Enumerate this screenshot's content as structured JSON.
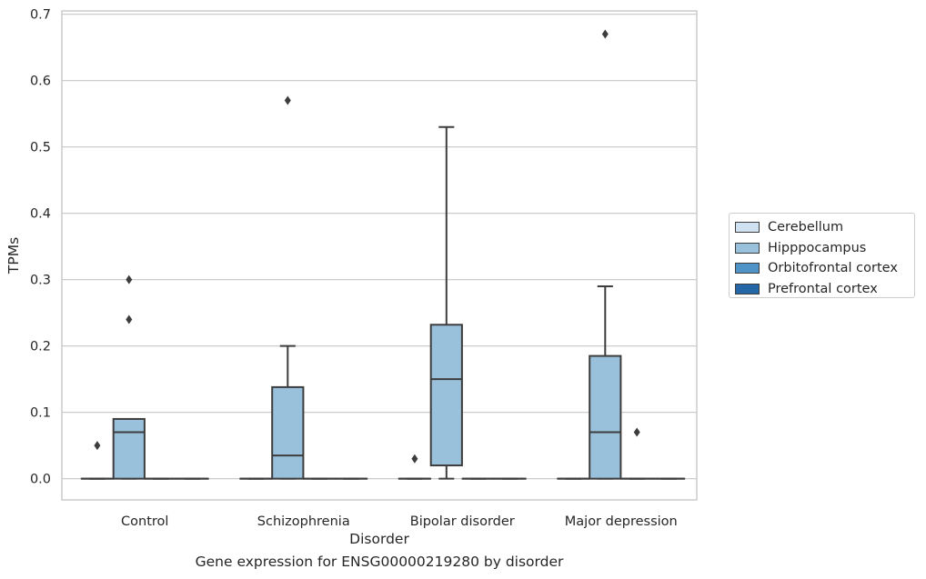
{
  "chart_data": {
    "type": "box",
    "xlabel": "Disorder",
    "ylabel": "TPMs",
    "caption": "Gene expression for ENSG00000219280 by disorder",
    "categories": [
      "Control",
      "Schizophrenia",
      "Bipolar disorder",
      "Major depression"
    ],
    "ylim": [
      -0.032,
      0.705
    ],
    "yticks": [
      0.0,
      0.1,
      0.2,
      0.3,
      0.4,
      0.5,
      0.6,
      0.7
    ],
    "ytick_labels": [
      "0.0",
      "0.1",
      "0.2",
      "0.3",
      "0.4",
      "0.5",
      "0.6",
      "0.7"
    ],
    "grid": true,
    "legend_position": "right",
    "series": [
      {
        "name": "Cerebellum",
        "color": "#d0e1f2",
        "boxes": [
          {
            "min": 0,
            "q1": 0,
            "median": 0,
            "q3": 0,
            "max": 0,
            "outliers": [
              0.05
            ]
          },
          {
            "min": 0,
            "q1": 0,
            "median": 0,
            "q3": 0,
            "max": 0,
            "outliers": []
          },
          {
            "min": 0,
            "q1": 0,
            "median": 0,
            "q3": 0,
            "max": 0,
            "outliers": [
              0.03
            ]
          },
          {
            "min": 0,
            "q1": 0,
            "median": 0,
            "q3": 0,
            "max": 0,
            "outliers": []
          }
        ]
      },
      {
        "name": "Hipppocampus",
        "color": "#9ac1db",
        "boxes": [
          {
            "min": 0,
            "q1": 0,
            "median": 0.07,
            "q3": 0.09,
            "max": 0.09,
            "outliers": [
              0.24,
              0.3
            ]
          },
          {
            "min": 0,
            "q1": 0,
            "median": 0.035,
            "q3": 0.138,
            "max": 0.2,
            "outliers": [
              0.57
            ]
          },
          {
            "min": 0,
            "q1": 0.02,
            "median": 0.15,
            "q3": 0.232,
            "max": 0.53,
            "outliers": []
          },
          {
            "min": 0,
            "q1": 0,
            "median": 0.07,
            "q3": 0.185,
            "max": 0.29,
            "outliers": [
              0.67
            ]
          }
        ]
      },
      {
        "name": "Orbitofrontal cortex",
        "color": "#5093c6",
        "boxes": [
          {
            "min": 0,
            "q1": 0,
            "median": 0,
            "q3": 0,
            "max": 0,
            "outliers": []
          },
          {
            "min": 0,
            "q1": 0,
            "median": 0,
            "q3": 0,
            "max": 0,
            "outliers": []
          },
          {
            "min": 0,
            "q1": 0,
            "median": 0,
            "q3": 0,
            "max": 0,
            "outliers": []
          },
          {
            "min": 0,
            "q1": 0,
            "median": 0,
            "q3": 0,
            "max": 0,
            "outliers": [
              0.07
            ]
          }
        ]
      },
      {
        "name": "Prefrontal cortex",
        "color": "#2466a6",
        "boxes": [
          {
            "min": 0,
            "q1": 0,
            "median": 0,
            "q3": 0,
            "max": 0,
            "outliers": []
          },
          {
            "min": 0,
            "q1": 0,
            "median": 0,
            "q3": 0,
            "max": 0,
            "outliers": []
          },
          {
            "min": 0,
            "q1": 0,
            "median": 0,
            "q3": 0,
            "max": 0,
            "outliers": []
          },
          {
            "min": 0,
            "q1": 0,
            "median": 0,
            "q3": 0,
            "max": 0,
            "outliers": []
          }
        ]
      }
    ]
  }
}
